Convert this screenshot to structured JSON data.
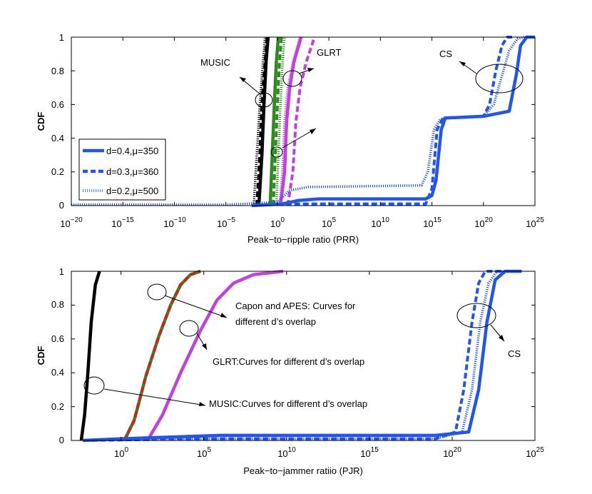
{
  "chart_data": [
    {
      "type": "line",
      "id": "top",
      "x_scale": "log10",
      "xlim": [
        -20,
        25
      ],
      "ylim": [
        0,
        1
      ],
      "xlabel": "Peak−to−ripple ratio (PRR)",
      "ylabel": "CDF",
      "x_ticks": [
        {
          "base": "10",
          "exp": "−20",
          "value": -20
        },
        {
          "base": "10",
          "exp": "−15",
          "value": -15
        },
        {
          "base": "10",
          "exp": "−10",
          "value": -10
        },
        {
          "base": "10",
          "exp": "−5",
          "value": -5
        },
        {
          "base": "10",
          "exp": "0",
          "value": 0
        },
        {
          "base": "10",
          "exp": "5",
          "value": 5
        },
        {
          "base": "10",
          "exp": "10",
          "value": 10
        },
        {
          "base": "10",
          "exp": "15",
          "value": 15
        },
        {
          "base": "10",
          "exp": "20",
          "value": 20
        },
        {
          "base": "10",
          "exp": "25",
          "value": 25
        }
      ],
      "y_ticks": [
        "0",
        "0.2",
        "0.4",
        "0.6",
        "0.8",
        "1"
      ],
      "legend": {
        "placement": "left-middle",
        "entries": [
          {
            "label": "d=0.4,μ=350",
            "style": "solid"
          },
          {
            "label": "d=0.3,μ=360",
            "style": "dashed"
          },
          {
            "label": "d=0.2,μ=500",
            "style": "dotted"
          }
        ]
      },
      "annotations": [
        {
          "text": "MUSIC"
        },
        {
          "text": "GLRT"
        },
        {
          "text": "CS"
        }
      ],
      "series": [
        {
          "name": "MUSIC d=0.4,μ=350",
          "color": "#000000",
          "style": "solid",
          "x": [
            -1.8,
            -1.5,
            -1.3,
            -1.1,
            -0.9
          ],
          "y": [
            0,
            0.3,
            0.6,
            0.85,
            1
          ]
        },
        {
          "name": "MUSIC d=0.3,μ=360",
          "color": "#000000",
          "style": "dashed",
          "x": [
            -2.0,
            -1.7,
            -1.5,
            -1.2,
            -1.0
          ],
          "y": [
            0,
            0.3,
            0.6,
            0.85,
            1
          ]
        },
        {
          "name": "MUSIC d=0.2,μ=500",
          "color": "#000000",
          "style": "dotted",
          "x": [
            -2.3,
            -2.0,
            -1.7,
            -1.4,
            -1.2
          ],
          "y": [
            0,
            0.3,
            0.6,
            0.85,
            1
          ]
        },
        {
          "name": "Capon/APES d=0.4,μ=350",
          "color": "#2e8b1e",
          "style": "solid",
          "x": [
            -0.7,
            -0.5,
            -0.3,
            -0.1,
            0.1
          ],
          "y": [
            0,
            0.3,
            0.6,
            0.85,
            1
          ]
        },
        {
          "name": "Capon/APES d=0.3,μ=360",
          "color": "#2e8b1e",
          "style": "dashed",
          "x": [
            -0.4,
            -0.2,
            0.0,
            0.2,
            0.4
          ],
          "y": [
            0,
            0.3,
            0.6,
            0.85,
            1
          ]
        },
        {
          "name": "Capon/APES d=0.2,μ=500",
          "color": "#2e8b1e",
          "style": "dotted",
          "x": [
            -0.1,
            0.1,
            0.3,
            0.5,
            0.7
          ],
          "y": [
            0,
            0.3,
            0.6,
            0.85,
            1
          ]
        },
        {
          "name": "GLRT d=0.4,μ=350",
          "color": "#c040e0",
          "style": "solid",
          "x": [
            0.3,
            0.7,
            0.9,
            1.2,
            1.6,
            2.3
          ],
          "y": [
            0,
            0.2,
            0.5,
            0.7,
            0.85,
            1
          ]
        },
        {
          "name": "GLRT d=0.3,μ=360",
          "color": "#c040e0",
          "style": "dashed",
          "x": [
            1.0,
            1.5,
            1.8,
            2.2,
            2.8,
            3.6
          ],
          "y": [
            0,
            0.2,
            0.5,
            0.7,
            0.85,
            1
          ]
        },
        {
          "name": "GLRT d=0.2,μ=500",
          "color": "#c040e0",
          "style": "dotted",
          "x": [
            0.2,
            0.5,
            0.7,
            1.0,
            1.5,
            2.2
          ],
          "y": [
            0,
            0.2,
            0.5,
            0.7,
            0.85,
            1
          ]
        },
        {
          "name": "CS d=0.4,μ=350",
          "color": "#2255ee",
          "style": "solid",
          "x": [
            -2.5,
            0.5,
            2.0,
            4.0,
            14.4,
            15.0,
            15.4,
            15.9,
            16.3,
            20.0,
            22.5,
            23.2,
            23.6,
            24.2,
            25.0
          ],
          "y": [
            0,
            0.01,
            0.03,
            0.04,
            0.04,
            0.06,
            0.15,
            0.45,
            0.52,
            0.53,
            0.56,
            0.78,
            0.95,
            1,
            1
          ]
        },
        {
          "name": "CS d=0.3,μ=360",
          "color": "#2255ee",
          "style": "dashed",
          "x": [
            -2.5,
            1.0,
            3.0,
            14.4,
            15.0,
            15.5,
            16.0,
            16.5,
            20.0,
            20.6,
            21.2,
            21.8,
            22.3,
            23.0
          ],
          "y": [
            0,
            0.01,
            0.01,
            0.01,
            0.1,
            0.45,
            0.51,
            0.52,
            0.53,
            0.6,
            0.8,
            0.95,
            1,
            1
          ]
        },
        {
          "name": "CS d=0.2,μ=500",
          "color": "#2255ee",
          "style": "dotted",
          "x": [
            -20.0,
            -5.0,
            0.0,
            1.2,
            3.0,
            14.0,
            14.6,
            15.2,
            15.8,
            16.3,
            20.0,
            21.0,
            21.7,
            22.5,
            23.3,
            24.0
          ],
          "y": [
            0.005,
            0.005,
            0.02,
            0.09,
            0.11,
            0.12,
            0.2,
            0.45,
            0.51,
            0.52,
            0.53,
            0.6,
            0.75,
            0.92,
            0.99,
            1
          ]
        }
      ]
    },
    {
      "type": "line",
      "id": "bottom",
      "x_scale": "log10",
      "xlim": [
        -3,
        25
      ],
      "ylim": [
        0,
        1
      ],
      "xlabel": "Peak−to−jammer ratiio (PJR)",
      "ylabel": "CDF",
      "x_ticks": [
        {
          "base": "10",
          "exp": "0",
          "value": 0
        },
        {
          "base": "10",
          "exp": "5",
          "value": 5
        },
        {
          "base": "10",
          "exp": "10",
          "value": 10
        },
        {
          "base": "10",
          "exp": "15",
          "value": 15
        },
        {
          "base": "10",
          "exp": "20",
          "value": 20
        },
        {
          "base": "10",
          "exp": "25",
          "value": 25
        }
      ],
      "y_ticks": [
        "0",
        "0.2",
        "0.4",
        "0.6",
        "0.8",
        "1"
      ],
      "annotations": [
        {
          "text": "Capon and APES: Curves for"
        },
        {
          "text": "different d’s overlap"
        },
        {
          "text": "GLRT:Curves for different d’s overlap"
        },
        {
          "text": "MUSIC:Curves for different d’s overlap"
        },
        {
          "text": "CS"
        }
      ],
      "series": [
        {
          "name": "MUSIC",
          "color": "#000000",
          "style": "solid",
          "x": [
            -2.4,
            -2.2,
            -2.0,
            -1.8,
            -1.55,
            -1.3
          ],
          "y": [
            0,
            0.15,
            0.4,
            0.7,
            0.92,
            1
          ]
        },
        {
          "name": "Capon and APES",
          "color": "#2e8b1e",
          "style": "solid",
          "x": [
            0.2,
            0.8,
            1.5,
            2.3,
            3.0,
            3.6,
            4.2,
            4.8
          ],
          "y": [
            0,
            0.12,
            0.38,
            0.62,
            0.8,
            0.92,
            0.98,
            1
          ]
        },
        {
          "name": "Capon and APES (overlap)",
          "color": "#cc2222",
          "style": "dashed",
          "x": [
            0.2,
            0.8,
            1.5,
            2.3,
            3.0,
            3.6,
            4.2,
            4.8
          ],
          "y": [
            0,
            0.12,
            0.38,
            0.62,
            0.8,
            0.92,
            0.98,
            1
          ]
        },
        {
          "name": "GLRT",
          "color": "#c040e0",
          "style": "solid",
          "x": [
            1.6,
            2.5,
            3.6,
            4.8,
            5.8,
            6.8,
            8.0,
            9.8
          ],
          "y": [
            0,
            0.15,
            0.4,
            0.65,
            0.83,
            0.93,
            0.98,
            1
          ]
        },
        {
          "name": "CS d=0.4,μ=350",
          "color": "#2255ee",
          "style": "solid",
          "x": [
            -2.3,
            0.0,
            3.0,
            6.0,
            10.0,
            14.0,
            19.0,
            21.0,
            21.6,
            22.1,
            22.6,
            23.2,
            24.2
          ],
          "y": [
            0,
            0.01,
            0.02,
            0.03,
            0.03,
            0.03,
            0.03,
            0.05,
            0.3,
            0.7,
            0.95,
            1,
            1
          ]
        },
        {
          "name": "CS d=0.3,μ=360",
          "color": "#2255ee",
          "style": "dashed",
          "x": [
            -2.3,
            5.0,
            19.0,
            20.2,
            20.7,
            21.2,
            21.6,
            22.0,
            23.0
          ],
          "y": [
            0,
            0.01,
            0.01,
            0.05,
            0.3,
            0.7,
            0.93,
            1,
            1
          ]
        },
        {
          "name": "CS d=0.2,μ=500",
          "color": "#2255ee",
          "style": "dotted",
          "x": [
            -2.3,
            5.0,
            19.0,
            20.6,
            21.2,
            21.7,
            22.2,
            22.7,
            23.5
          ],
          "y": [
            0,
            0.01,
            0.01,
            0.05,
            0.3,
            0.7,
            0.93,
            1,
            1
          ]
        }
      ]
    }
  ]
}
